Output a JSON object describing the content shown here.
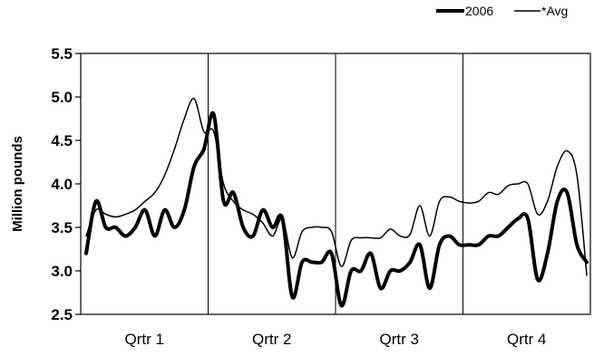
{
  "chart_data": {
    "type": "line",
    "ylabel": "Million pounds",
    "xlabel": "",
    "ylim": [
      2.5,
      5.5
    ],
    "yticks": [
      "5.5",
      "5.0",
      "4.5",
      "4.0",
      "3.5",
      "3.0",
      "2.5"
    ],
    "categories": [
      "Qrtr 1",
      "Qrtr 2",
      "Qrtr 3",
      "Qrtr 4"
    ],
    "x_unit": "week",
    "x_range": [
      1,
      52
    ],
    "grid": "vertical lines between quarters",
    "legend_position": "top-right",
    "series": [
      {
        "name": "2006",
        "style": "thick",
        "color": "#000000",
        "x": [
          1,
          2,
          3,
          4,
          5,
          6,
          7,
          8,
          9,
          10,
          11,
          12,
          13,
          14,
          15,
          16,
          17,
          18,
          19,
          20,
          21,
          22,
          23,
          24,
          25,
          26,
          27,
          28,
          29,
          30,
          31,
          32,
          33,
          34,
          35,
          36,
          37,
          38,
          39,
          40,
          41,
          42,
          43,
          44,
          45,
          46,
          47,
          48,
          49,
          50,
          51,
          52
        ],
        "values": [
          3.2,
          3.8,
          3.5,
          3.5,
          3.4,
          3.5,
          3.7,
          3.4,
          3.7,
          3.5,
          3.7,
          4.2,
          4.4,
          4.8,
          3.8,
          3.9,
          3.5,
          3.4,
          3.7,
          3.5,
          3.6,
          2.7,
          3.1,
          3.1,
          3.1,
          3.2,
          2.6,
          3.0,
          3.0,
          3.2,
          2.8,
          3.0,
          3.0,
          3.1,
          3.3,
          2.8,
          3.3,
          3.4,
          3.3,
          3.3,
          3.3,
          3.4,
          3.4,
          3.5,
          3.6,
          3.6,
          2.9,
          3.2,
          3.8,
          3.9,
          3.3,
          3.1
        ]
      },
      {
        "name": "*Avg",
        "style": "thin",
        "color": "#000000",
        "x": [
          1,
          2,
          3,
          4,
          5,
          6,
          7,
          8,
          9,
          10,
          11,
          12,
          13,
          14,
          15,
          16,
          17,
          18,
          19,
          20,
          21,
          22,
          23,
          24,
          25,
          26,
          27,
          28,
          29,
          30,
          31,
          32,
          33,
          34,
          35,
          36,
          37,
          38,
          39,
          40,
          41,
          42,
          43,
          44,
          45,
          46,
          47,
          48,
          49,
          50,
          51,
          52
        ],
        "values": [
          3.4,
          3.7,
          3.65,
          3.62,
          3.65,
          3.7,
          3.8,
          3.9,
          4.1,
          4.4,
          4.75,
          4.98,
          4.6,
          4.6,
          4.0,
          3.8,
          3.7,
          3.65,
          3.55,
          3.4,
          3.6,
          3.15,
          3.45,
          3.5,
          3.5,
          3.45,
          3.05,
          3.35,
          3.38,
          3.38,
          3.38,
          3.48,
          3.4,
          3.42,
          3.75,
          3.4,
          3.8,
          3.85,
          3.8,
          3.78,
          3.8,
          3.9,
          3.88,
          3.98,
          4.0,
          4.0,
          3.65,
          3.8,
          4.2,
          4.38,
          4.1,
          2.95
        ]
      }
    ]
  }
}
